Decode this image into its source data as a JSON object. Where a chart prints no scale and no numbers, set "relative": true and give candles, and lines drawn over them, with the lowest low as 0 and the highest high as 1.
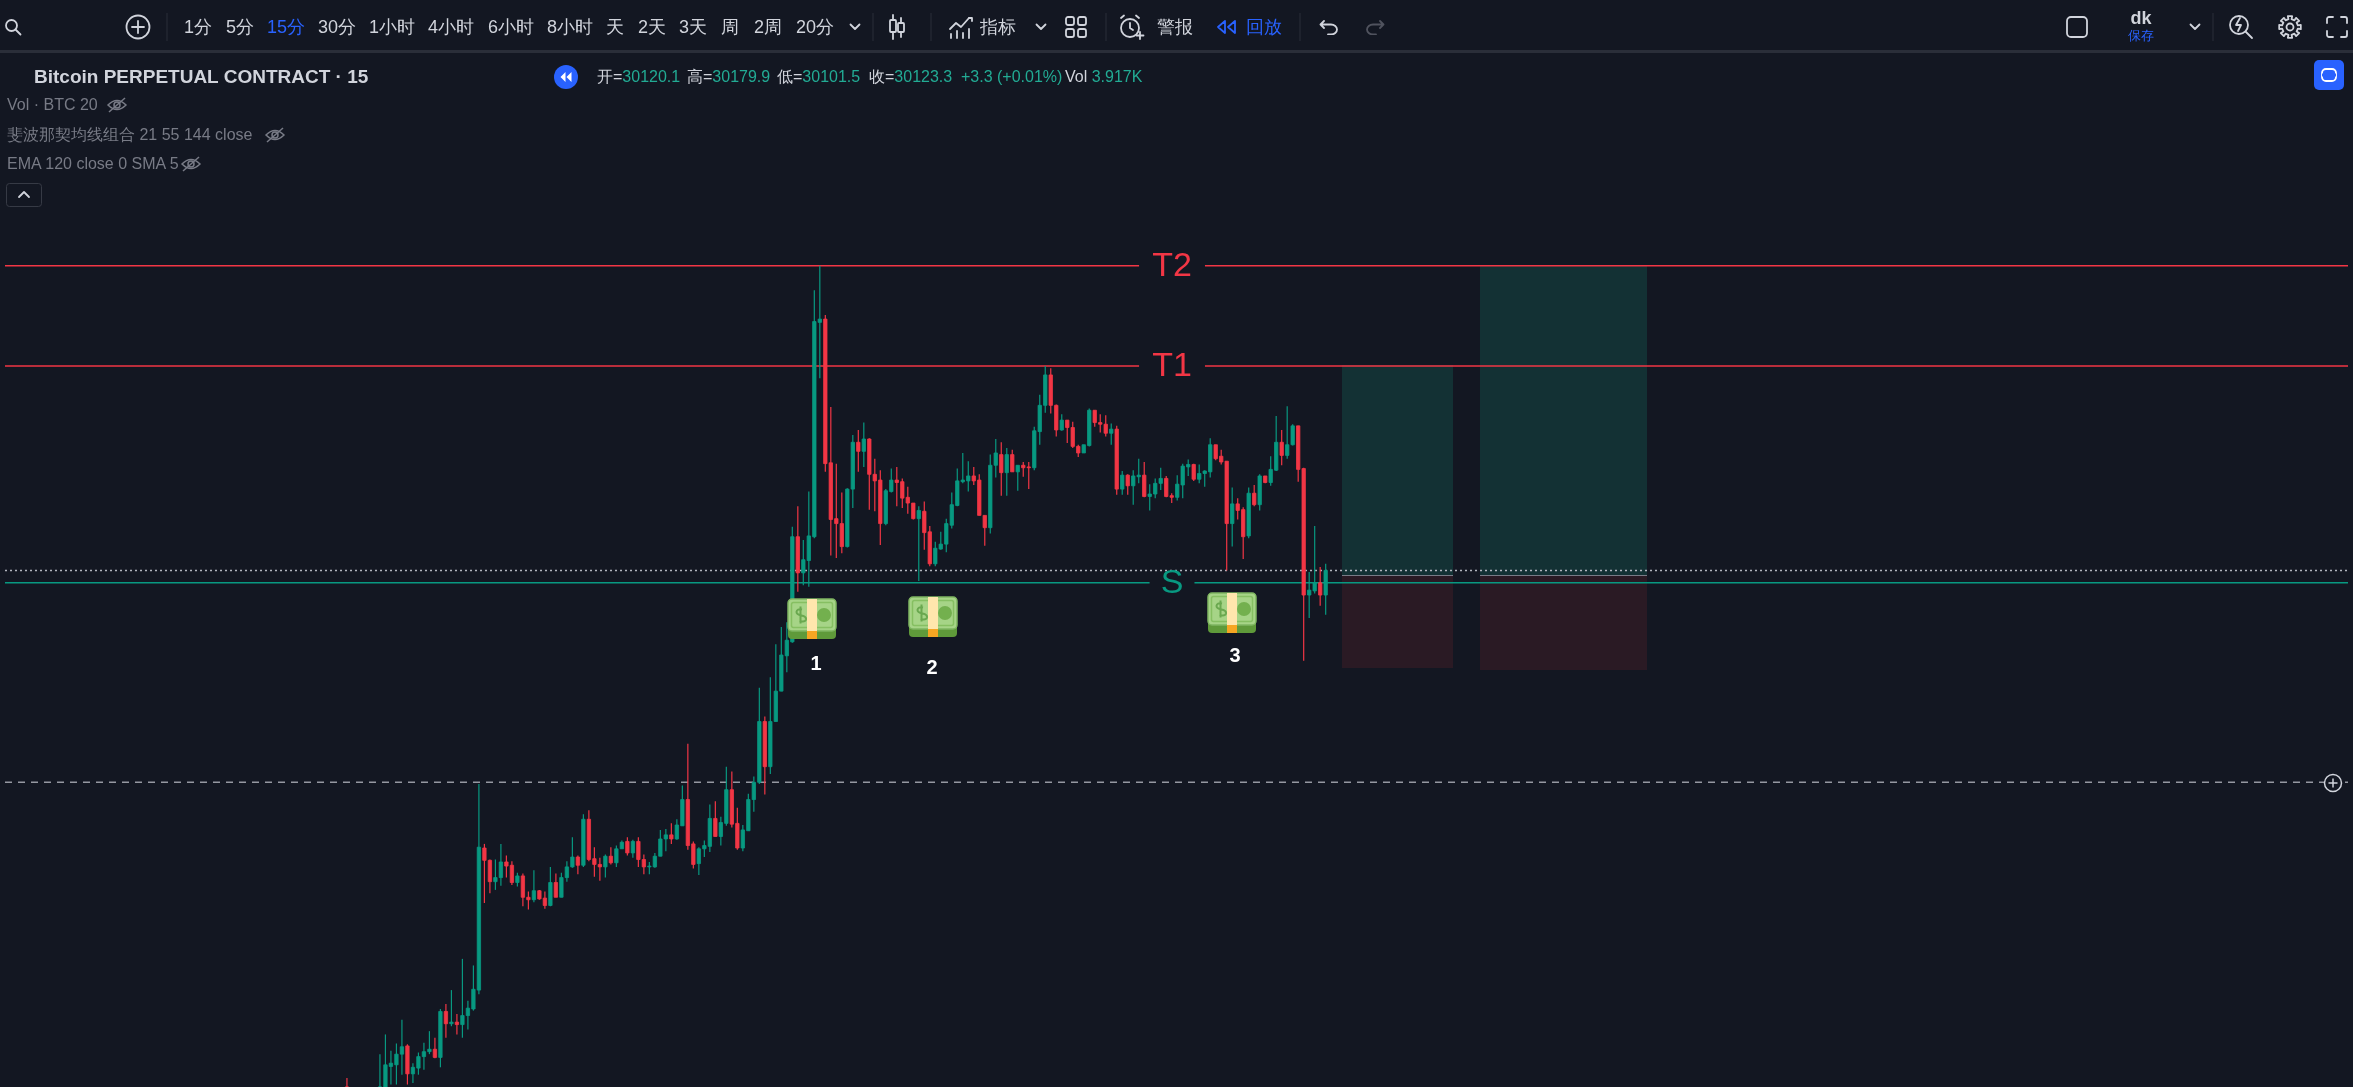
{
  "chart_data": {
    "type": "candlestick",
    "relative": true,
    "title": "Bitcoin PERPETUAL CONTRACT · 15",
    "categories": [
      null,
      null,
      null,
      null,
      null,
      null,
      null,
      null,
      null,
      null,
      null,
      null,
      null,
      null,
      null,
      null,
      null,
      null,
      null,
      null,
      null,
      null,
      null,
      null,
      null,
      null,
      null,
      null,
      null,
      null,
      null,
      null,
      null,
      null,
      null,
      null,
      null,
      null,
      null,
      null,
      null,
      null,
      null,
      null,
      null,
      null,
      null,
      null,
      null,
      null,
      null,
      null,
      null,
      null,
      null,
      null,
      null,
      null,
      null,
      null,
      null,
      null,
      null,
      null,
      null,
      null,
      null,
      null,
      null,
      null,
      null,
      null,
      null,
      null,
      null,
      null,
      null,
      null,
      null,
      null,
      null,
      null,
      null,
      null,
      null,
      null,
      null,
      null,
      null,
      null,
      null,
      null,
      null,
      null,
      null,
      null,
      null,
      null,
      null,
      null,
      null,
      null,
      null,
      null,
      null,
      null,
      null,
      null,
      null,
      null,
      null,
      null,
      null,
      null,
      null,
      null,
      null,
      null,
      null,
      null,
      null,
      null,
      null,
      null,
      null,
      null,
      null,
      null,
      null,
      null,
      null,
      null,
      null,
      null,
      null,
      null,
      null,
      null,
      null,
      null,
      null,
      null,
      null,
      null,
      null,
      null,
      null,
      null,
      null,
      null,
      null,
      null,
      null,
      null,
      null,
      null,
      null,
      null,
      null,
      null,
      null,
      null,
      null,
      null,
      null,
      null,
      null,
      null,
      null,
      null,
      null,
      null,
      null,
      null,
      null,
      null,
      null,
      null,
      null
    ],
    "ohlc": [
      [
        0,
        0.011,
        0,
        0
      ],
      null,
      null,
      null,
      null,
      null,
      [
        0,
        0.04,
        0,
        0
      ],
      [
        0,
        0.064,
        0,
        0.027
      ],
      [
        0.025,
        0.044,
        0.003,
        0.029
      ],
      [
        0.027,
        0.053,
        0.003,
        0.04
      ],
      [
        0.04,
        0.082,
        0.015,
        0.049
      ],
      [
        0.05,
        0.052,
        0.003,
        0.016
      ],
      [
        0.016,
        0.029,
        0.005,
        0.024
      ],
      [
        0.023,
        0.042,
        0.015,
        0.037
      ],
      [
        0.037,
        0.054,
        0.021,
        0.043
      ],
      [
        0.043,
        0.068,
        0.04,
        0.046
      ],
      [
        0.046,
        0.06,
        0.035,
        0.036
      ],
      [
        0.036,
        0.095,
        0.024,
        0.092
      ],
      [
        0.092,
        0.101,
        0.06,
        0.077
      ],
      [
        0.077,
        0.118,
        0.074,
        0.079
      ],
      [
        0.079,
        0.089,
        0.064,
        0.076
      ],
      [
        0.076,
        0.156,
        0.06,
        0.087
      ],
      [
        0.087,
        0.105,
        0.07,
        0.096
      ],
      [
        0.095,
        0.148,
        0.093,
        0.119
      ],
      [
        0.118,
        0.369,
        0.113,
        0.292
      ],
      [
        0.291,
        0.296,
        0.224,
        0.276
      ],
      [
        0.276,
        0.277,
        0.236,
        0.25
      ],
      [
        0.25,
        0.277,
        0.24,
        0.255
      ],
      [
        0.255,
        0.296,
        0.245,
        0.274
      ],
      [
        0.274,
        0.282,
        0.255,
        0.269
      ],
      [
        0.27,
        0.275,
        0.246,
        0.249
      ],
      [
        0.249,
        0.261,
        0.244,
        0.257
      ],
      [
        0.257,
        0.26,
        0.22,
        0.231
      ],
      [
        0.231,
        0.238,
        0.216,
        0.228
      ],
      [
        0.228,
        0.264,
        0.225,
        0.239
      ],
      [
        0.239,
        0.24,
        0.228,
        0.229
      ],
      [
        0.23,
        0.238,
        0.217,
        0.221
      ],
      [
        0.221,
        0.268,
        0.22,
        0.249
      ],
      [
        0.249,
        0.26,
        0.231,
        0.231
      ],
      [
        0.231,
        0.261,
        0.231,
        0.255
      ],
      [
        0.255,
        0.275,
        0.25,
        0.268
      ],
      [
        0.268,
        0.304,
        0.267,
        0.28
      ],
      [
        0.28,
        0.282,
        0.259,
        0.27
      ],
      [
        0.27,
        0.332,
        0.268,
        0.326
      ],
      [
        0.326,
        0.337,
        0.275,
        0.277
      ],
      [
        0.278,
        0.292,
        0.256,
        0.271
      ],
      [
        0.271,
        0.279,
        0.251,
        0.268
      ],
      [
        0.268,
        0.283,
        0.255,
        0.281
      ],
      [
        0.281,
        0.292,
        0.271,
        0.273
      ],
      [
        0.273,
        0.294,
        0.268,
        0.29
      ],
      [
        0.29,
        0.3,
        0.29,
        0.298
      ],
      [
        0.299,
        0.304,
        0.282,
        0.285
      ],
      [
        0.285,
        0.301,
        0.279,
        0.299
      ],
      [
        0.299,
        0.304,
        0.268,
        0.277
      ],
      [
        0.277,
        0.283,
        0.259,
        0.268
      ],
      [
        0.268,
        0.274,
        0.259,
        0.269
      ],
      [
        0.268,
        0.285,
        0.267,
        0.281
      ],
      [
        0.281,
        0.313,
        0.281,
        0.302
      ],
      [
        0.302,
        0.314,
        0.287,
        0.307
      ],
      [
        0.307,
        0.321,
        0.296,
        0.302
      ],
      [
        0.302,
        0.326,
        0.301,
        0.319
      ],
      [
        0.318,
        0.367,
        0.318,
        0.35
      ],
      [
        0.35,
        0.418,
        0.289,
        0.294
      ],
      [
        0.296,
        0.299,
        0.266,
        0.271
      ],
      [
        0.272,
        0.292,
        0.258,
        0.29
      ],
      [
        0.29,
        0.3,
        0.28,
        0.294
      ],
      [
        0.293,
        0.344,
        0.286,
        0.327
      ],
      [
        0.327,
        0.348,
        0.305,
        0.305
      ],
      [
        0.305,
        0.329,
        0.294,
        0.322
      ],
      [
        0.321,
        0.39,
        0.318,
        0.362
      ],
      [
        0.362,
        0.384,
        0.316,
        0.32
      ],
      [
        0.321,
        0.34,
        0.289,
        0.291
      ],
      [
        0.291,
        0.319,
        0.287,
        0.313
      ],
      [
        0.312,
        0.357,
        0.312,
        0.35
      ],
      [
        0.35,
        0.378,
        0.335,
        0.371
      ],
      [
        0.371,
        0.486,
        0.369,
        0.445
      ],
      [
        0.445,
        0.451,
        0.356,
        0.39
      ],
      [
        0.39,
        0.499,
        0.381,
        0.445
      ],
      [
        0.445,
        0.539,
        0.445,
        0.482
      ],
      [
        0.482,
        0.56,
        0.482,
        0.526
      ],
      [
        0.525,
        0.566,
        0.505,
        0.544
      ],
      [
        0.542,
        0.682,
        0.541,
        0.67
      ],
      [
        0.67,
        0.707,
        0.603,
        0.626
      ],
      [
        0.626,
        0.666,
        0.611,
        0.642
      ],
      [
        0.641,
        0.725,
        0.609,
        0.671
      ],
      [
        0.67,
        0.97,
        0.668,
        0.932
      ],
      [
        0.931,
        1.0,
        0.863,
        0.935
      ],
      [
        0.935,
        0.94,
        0.749,
        0.759
      ],
      [
        0.76,
        0.828,
        0.647,
        0.691
      ],
      [
        0.692,
        0.759,
        0.644,
        0.686
      ],
      [
        0.686,
        0.724,
        0.65,
        0.658
      ],
      [
        0.658,
        0.729,
        0.657,
        0.728
      ],
      [
        0.728,
        0.794,
        0.705,
        0.785
      ],
      [
        0.785,
        0.8,
        0.749,
        0.774
      ],
      [
        0.774,
        0.809,
        0.755,
        0.789
      ],
      [
        0.789,
        0.79,
        0.703,
        0.746
      ],
      [
        0.746,
        0.765,
        0.701,
        0.738
      ],
      [
        0.739,
        0.751,
        0.66,
        0.686
      ],
      [
        0.686,
        0.728,
        0.684,
        0.726
      ],
      [
        0.725,
        0.753,
        0.724,
        0.739
      ],
      [
        0.739,
        0.755,
        0.707,
        0.736
      ],
      [
        0.737,
        0.741,
        0.705,
        0.717
      ],
      [
        0.718,
        0.731,
        0.698,
        0.711
      ],
      [
        0.711,
        0.711,
        0.691,
        0.692
      ],
      [
        0.692,
        0.707,
        0.616,
        0.702
      ],
      [
        0.701,
        0.713,
        0.654,
        0.675
      ],
      [
        0.676,
        0.683,
        0.634,
        0.637
      ],
      [
        0.637,
        0.664,
        0.634,
        0.656
      ],
      [
        0.655,
        0.676,
        0.654,
        0.661
      ],
      [
        0.661,
        0.692,
        0.651,
        0.686
      ],
      [
        0.684,
        0.724,
        0.68,
        0.709
      ],
      [
        0.708,
        0.753,
        0.707,
        0.738
      ],
      [
        0.737,
        0.772,
        0.735,
        0.739
      ],
      [
        0.738,
        0.762,
        0.725,
        0.744
      ],
      [
        0.744,
        0.755,
        0.733,
        0.738
      ],
      [
        0.739,
        0.746,
        0.696,
        0.696
      ],
      [
        0.696,
        0.696,
        0.659,
        0.681
      ],
      [
        0.681,
        0.77,
        0.674,
        0.757
      ],
      [
        0.757,
        0.789,
        0.742,
        0.772
      ],
      [
        0.77,
        0.785,
        0.72,
        0.748
      ],
      [
        0.748,
        0.778,
        0.72,
        0.77
      ],
      [
        0.77,
        0.776,
        0.749,
        0.749
      ],
      [
        0.749,
        0.757,
        0.726,
        0.757
      ],
      [
        0.757,
        0.761,
        0.743,
        0.754
      ],
      [
        0.755,
        0.761,
        0.728,
        0.754
      ],
      [
        0.754,
        0.804,
        0.751,
        0.799
      ],
      [
        0.798,
        0.843,
        0.782,
        0.83
      ],
      [
        0.83,
        0.878,
        0.821,
        0.867
      ],
      [
        0.867,
        0.875,
        0.82,
        0.83
      ],
      [
        0.83,
        0.831,
        0.792,
        0.8
      ],
      [
        0.8,
        0.819,
        0.799,
        0.812
      ],
      [
        0.812,
        0.812,
        0.784,
        0.803
      ],
      [
        0.803,
        0.81,
        0.778,
        0.78
      ],
      [
        0.78,
        0.782,
        0.767,
        0.772
      ],
      [
        0.772,
        0.782,
        0.772,
        0.782
      ],
      [
        0.781,
        0.826,
        0.78,
        0.824
      ],
      [
        0.824,
        0.824,
        0.804,
        0.809
      ],
      [
        0.809,
        0.819,
        0.797,
        0.807
      ],
      [
        0.807,
        0.818,
        0.792,
        0.796
      ],
      [
        0.796,
        0.808,
        0.782,
        0.801
      ],
      [
        0.801,
        0.805,
        0.721,
        0.728
      ],
      [
        0.728,
        0.75,
        0.721,
        0.745
      ],
      [
        0.745,
        0.746,
        0.721,
        0.732
      ],
      [
        0.732,
        0.751,
        0.709,
        0.744
      ],
      [
        0.743,
        0.765,
        0.735,
        0.745
      ],
      [
        0.745,
        0.761,
        0.718,
        0.719
      ],
      [
        0.719,
        0.734,
        0.702,
        0.722
      ],
      [
        0.722,
        0.741,
        0.717,
        0.735
      ],
      [
        0.735,
        0.754,
        0.727,
        0.741
      ],
      [
        0.741,
        0.744,
        0.718,
        0.719
      ],
      [
        0.72,
        0.723,
        0.711,
        0.718
      ],
      [
        0.718,
        0.745,
        0.714,
        0.734
      ],
      [
        0.733,
        0.759,
        0.717,
        0.756
      ],
      [
        0.755,
        0.764,
        0.744,
        0.758
      ],
      [
        0.758,
        0.759,
        0.738,
        0.74
      ],
      [
        0.74,
        0.758,
        0.735,
        0.747
      ],
      [
        0.747,
        0.751,
        0.731,
        0.75
      ],
      [
        0.749,
        0.79,
        0.742,
        0.782
      ],
      [
        0.782,
        0.782,
        0.763,
        0.765
      ],
      [
        0.768,
        0.776,
        0.758,
        0.761
      ],
      [
        0.762,
        0.762,
        0.629,
        0.686
      ],
      [
        0.686,
        0.73,
        0.658,
        0.71
      ],
      [
        0.71,
        0.717,
        0.691,
        0.702
      ],
      [
        0.703,
        0.706,
        0.643,
        0.67
      ],
      [
        0.671,
        0.73,
        0.668,
        0.723
      ],
      [
        0.723,
        0.733,
        0.707,
        0.709
      ],
      [
        0.709,
        0.746,
        0.702,
        0.744
      ],
      [
        0.744,
        0.744,
        0.735,
        0.736
      ],
      [
        0.736,
        0.768,
        0.732,
        0.752
      ],
      [
        0.751,
        0.817,
        0.75,
        0.785
      ],
      [
        0.785,
        0.8,
        0.757,
        0.769
      ],
      [
        0.769,
        0.829,
        0.765,
        0.782
      ],
      [
        0.782,
        0.807,
        0.781,
        0.805
      ],
      [
        0.805,
        0.805,
        0.737,
        0.752
      ],
      [
        0.753,
        0.754,
        0.519,
        0.599
      ],
      [
        0.599,
        0.627,
        0.571,
        0.605
      ],
      [
        0.604,
        0.683,
        0.601,
        0.614
      ],
      [
        0.614,
        0.633,
        0.586,
        0.599
      ],
      [
        0.599,
        0.637,
        0.575,
        0.629
      ]
    ],
    "colors": [
      "#f23645",
      null,
      null,
      null,
      null,
      null,
      "#089981",
      "#089981",
      "#089981",
      "#089981",
      "#089981",
      "#f23645",
      "#089981",
      "#089981",
      "#089981",
      "#089981",
      "#f23645",
      "#089981",
      "#f23645",
      "#089981",
      "#f23645",
      "#089981",
      "#089981",
      "#089981",
      "#089981",
      "#f23645",
      "#f23645",
      "#089981",
      "#089981",
      "#f23645",
      "#f23645",
      "#089981",
      "#f23645",
      "#f23645",
      "#089981",
      "#f23645",
      "#f23645",
      "#089981",
      "#f23645",
      "#089981",
      "#089981",
      "#089981",
      "#f23645",
      "#089981",
      "#f23645",
      "#f23645",
      "#f23645",
      "#089981",
      "#f23645",
      "#089981",
      "#089981",
      "#f23645",
      "#089981",
      "#f23645",
      "#f23645",
      "#089981",
      "#089981",
      "#089981",
      "#089981",
      "#f23645",
      "#089981",
      "#089981",
      "#f23645",
      "#f23645",
      "#089981",
      "#089981",
      "#089981",
      "#f23645",
      "#089981",
      "#089981",
      "#f23645",
      "#f23645",
      "#089981",
      "#089981",
      "#089981",
      "#089981",
      "#f23645",
      "#089981",
      "#089981",
      "#089981",
      "#089981",
      "#089981",
      "#f23645",
      "#089981",
      "#089981",
      "#089981",
      "#089981",
      "#f23645",
      "#f23645",
      "#f23645",
      "#f23645",
      "#089981",
      "#089981",
      "#f23645",
      "#089981",
      "#f23645",
      "#f23645",
      "#f23645",
      "#089981",
      "#089981",
      "#f23645",
      "#f23645",
      "#f23645",
      "#f23645",
      "#089981",
      "#f23645",
      "#f23645",
      "#089981",
      "#089981",
      "#089981",
      "#089981",
      "#089981",
      "#089981",
      "#089981",
      "#f23645",
      "#f23645",
      "#f23645",
      "#089981",
      "#089981",
      "#f23645",
      "#089981",
      "#f23645",
      "#089981",
      "#f23645",
      "#f23645",
      "#089981",
      "#089981",
      "#089981",
      "#f23645",
      "#f23645",
      "#089981",
      "#f23645",
      "#f23645",
      "#f23645",
      "#089981",
      "#089981",
      "#f23645",
      "#f23645",
      "#f23645",
      "#089981",
      "#f23645",
      "#089981",
      "#f23645",
      "#089981",
      "#089981",
      "#f23645",
      "#089981",
      "#089981",
      "#089981",
      "#f23645",
      "#f23645",
      "#089981",
      "#089981",
      "#089981",
      "#f23645",
      "#089981",
      "#089981",
      "#089981",
      "#f23645",
      "#f23645",
      "#f23645",
      "#089981",
      "#f23645",
      "#f23645",
      "#089981",
      "#f23645",
      "#089981",
      "#f23645",
      "#089981",
      "#089981",
      "#f23645",
      "#089981",
      "#089981",
      "#f23645",
      "#f23645",
      "#089981",
      "#089981",
      "#f23645",
      "#089981"
    ],
    "ref_lines": [
      {
        "axis": "y",
        "value": 1.0,
        "label": "T2",
        "color": "#f23645"
      },
      {
        "axis": "y",
        "value": 0.878,
        "label": "T1",
        "color": "#f23645"
      },
      {
        "axis": "y",
        "value": 0.614,
        "label": "S",
        "color": "#089981"
      },
      {
        "axis": "y",
        "value": 0.629,
        "color": "#b2b5be",
        "line_style": "dotted"
      },
      {
        "axis": "y",
        "value": 0.371,
        "color": "#9598a1",
        "line_style": "dashed"
      }
    ],
    "annotations": [
      "1分",
      "5分",
      "15分",
      "30分",
      "1小时",
      "4小时",
      "6小时",
      "8小时",
      "天",
      "2天",
      "3天",
      "周",
      "2周",
      "20分",
      "指标",
      "警报",
      "回放",
      "dk",
      "保存",
      "开=30120.1",
      "高=30179.9",
      "低=30101.5",
      "收=30123.3",
      "+3.3 (+0.01%)",
      "Vol 3.917K",
      "Vol · BTC 20",
      "斐波那契均线组合 21 55 144 close",
      "EMA 120 close 0 SMA 5",
      "1",
      "2",
      "3"
    ]
  }
}
